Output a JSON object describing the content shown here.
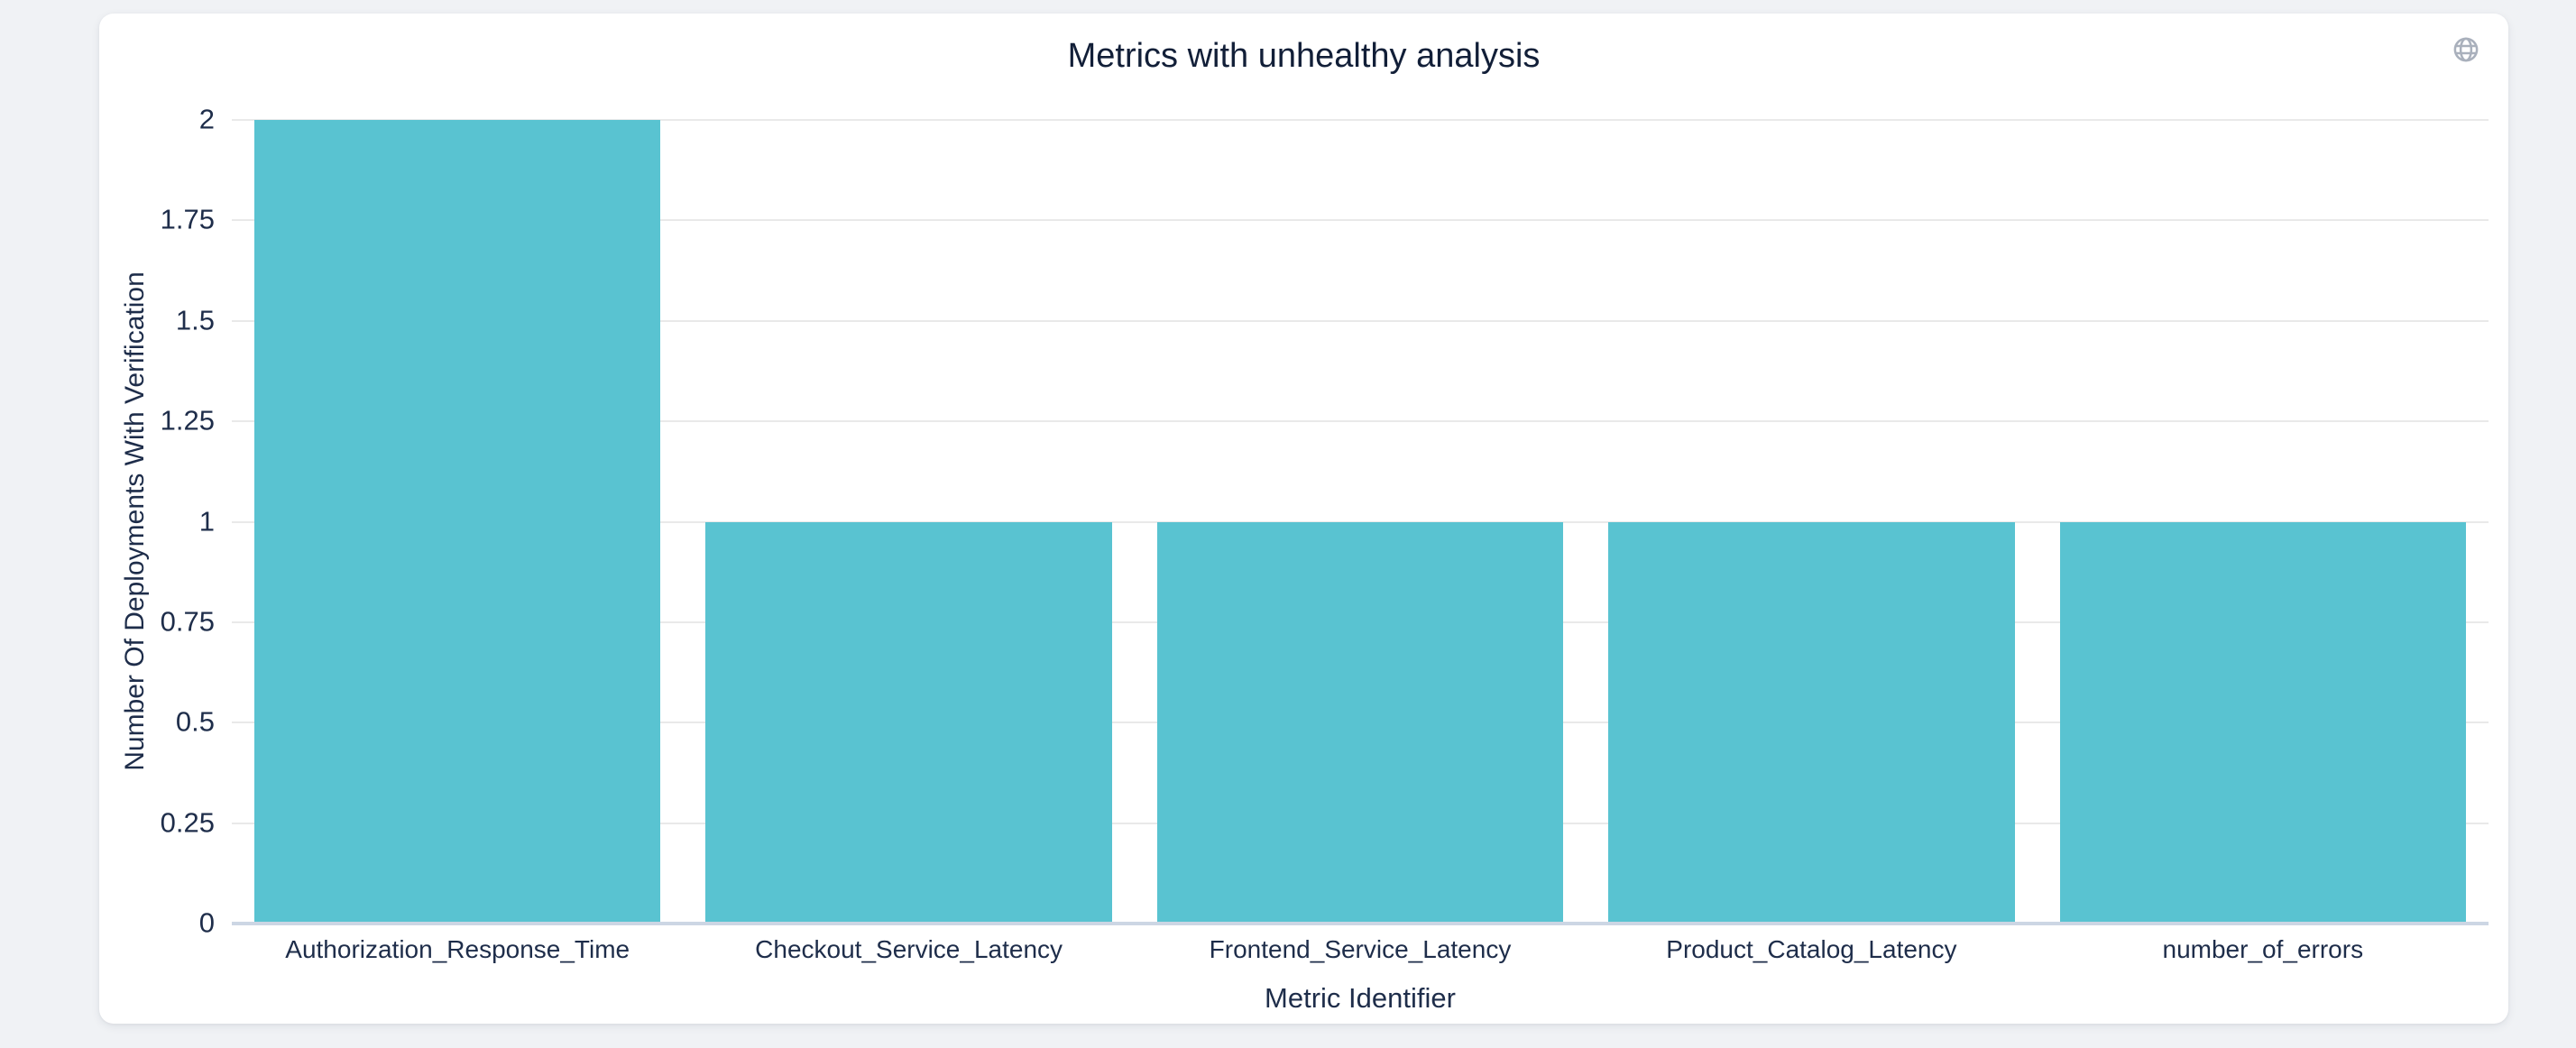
{
  "card": {
    "globe_icon": "globe-icon"
  },
  "colors": {
    "page_background": "#f0f2f5",
    "card_background": "#ffffff",
    "title_text": "#121f38",
    "tick_text": "#1e2d4a",
    "gridline": "#e9e9e9",
    "zero_line": "#ccd6e4",
    "bar": "#59c3d1",
    "globe_icon": "#a9b0bc"
  },
  "chart_data": {
    "type": "bar",
    "title": "Metrics with unhealthy analysis",
    "xlabel": "Metric Identifier",
    "ylabel": "Number Of Deployments With Verification",
    "categories": [
      "Authorization_Response_Time",
      "Checkout_Service_Latency",
      "Frontend_Service_Latency",
      "Product_Catalog_Latency",
      "number_of_errors"
    ],
    "values": [
      2,
      1,
      1,
      1,
      1
    ],
    "ylim": [
      0,
      2
    ],
    "yticks": {
      "values": [
        0,
        0.25,
        0.5,
        0.75,
        1,
        1.25,
        1.5,
        1.75,
        2
      ],
      "labels": [
        "0",
        "0.25",
        "0.5",
        "0.75",
        "1",
        "1.25",
        "1.5",
        "1.75",
        "2"
      ]
    },
    "grid": "horizontal",
    "legend": "none",
    "bar_band_fraction": 0.9
  }
}
